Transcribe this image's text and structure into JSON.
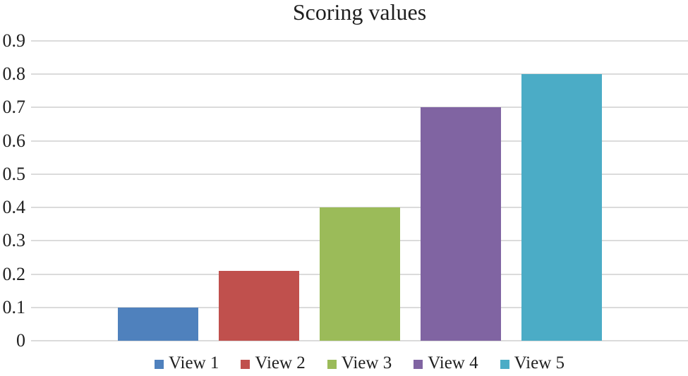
{
  "chart_data": {
    "type": "bar",
    "title": "Scoring values",
    "categories": [
      "View 1",
      "View 2",
      "View 3",
      "View 4",
      "View 5"
    ],
    "values": [
      0.1,
      0.21,
      0.4,
      0.7,
      0.8
    ],
    "bar_colors": [
      "#4F81BD",
      "#C0504D",
      "#9BBB59",
      "#8064A2",
      "#4BACC6"
    ],
    "xlabel": "",
    "ylabel": "",
    "ylim": [
      0,
      0.9
    ],
    "yticks": [
      0,
      0.1,
      0.2,
      0.3,
      0.4,
      0.5,
      0.6,
      0.7,
      0.8,
      0.9
    ],
    "ytick_labels": [
      "0",
      "0.1",
      "0.2",
      "0.3",
      "0.4",
      "0.5",
      "0.6",
      "0.7",
      "0.8",
      "0.9"
    ],
    "grid": true,
    "legend_position": "bottom"
  },
  "colors": {
    "gridline": "#DBDBDB",
    "text": "#1F1F1F",
    "background": "#FFFFFF"
  }
}
